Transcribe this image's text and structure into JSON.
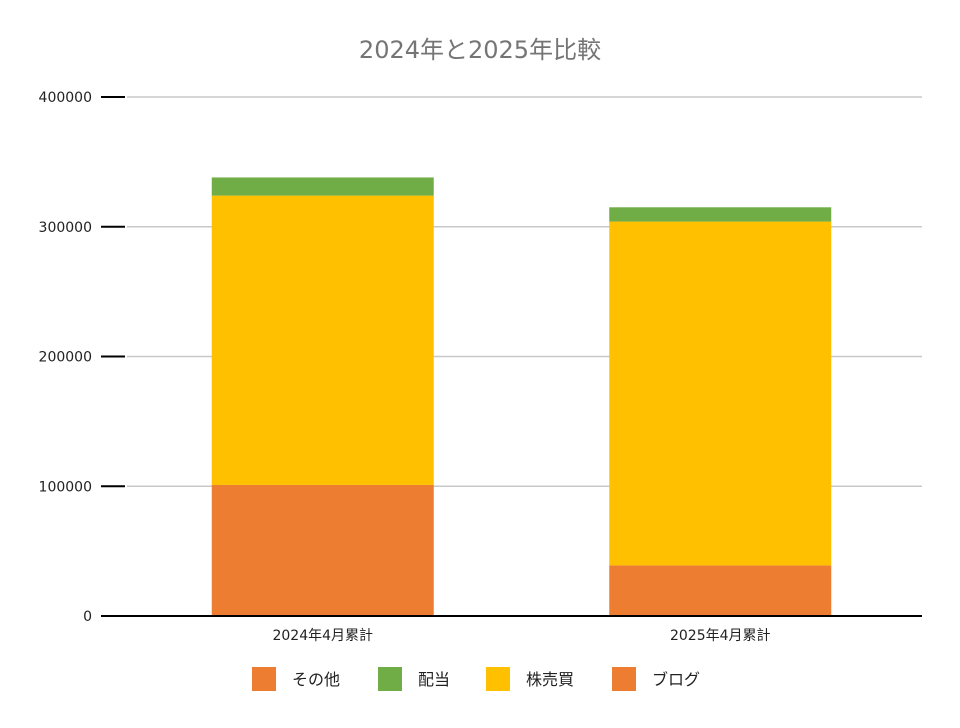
{
  "chart_data": {
    "type": "bar",
    "stacked": true,
    "title": "2024年と2025年比較",
    "categories": [
      "2024年4月累計",
      "2025年4月累計"
    ],
    "series": [
      {
        "name": "ブログ",
        "color": "#ED7D31",
        "values": [
          101000,
          39000
        ]
      },
      {
        "name": "株売買",
        "color": "#FFC000",
        "values": [
          223000,
          265000
        ]
      },
      {
        "name": "配当",
        "color": "#70AD47",
        "values": [
          14000,
          11000
        ]
      },
      {
        "name": "その他",
        "color": "#ED7D31",
        "values": [
          0,
          0
        ]
      }
    ],
    "legend_order": [
      "その他",
      "配当",
      "株売買",
      "ブログ"
    ],
    "ylim": [
      0,
      400000
    ],
    "yticks": [
      "0",
      "100000",
      "200000",
      "300000",
      "400000"
    ],
    "grid": true,
    "legend_position": "bottom"
  }
}
